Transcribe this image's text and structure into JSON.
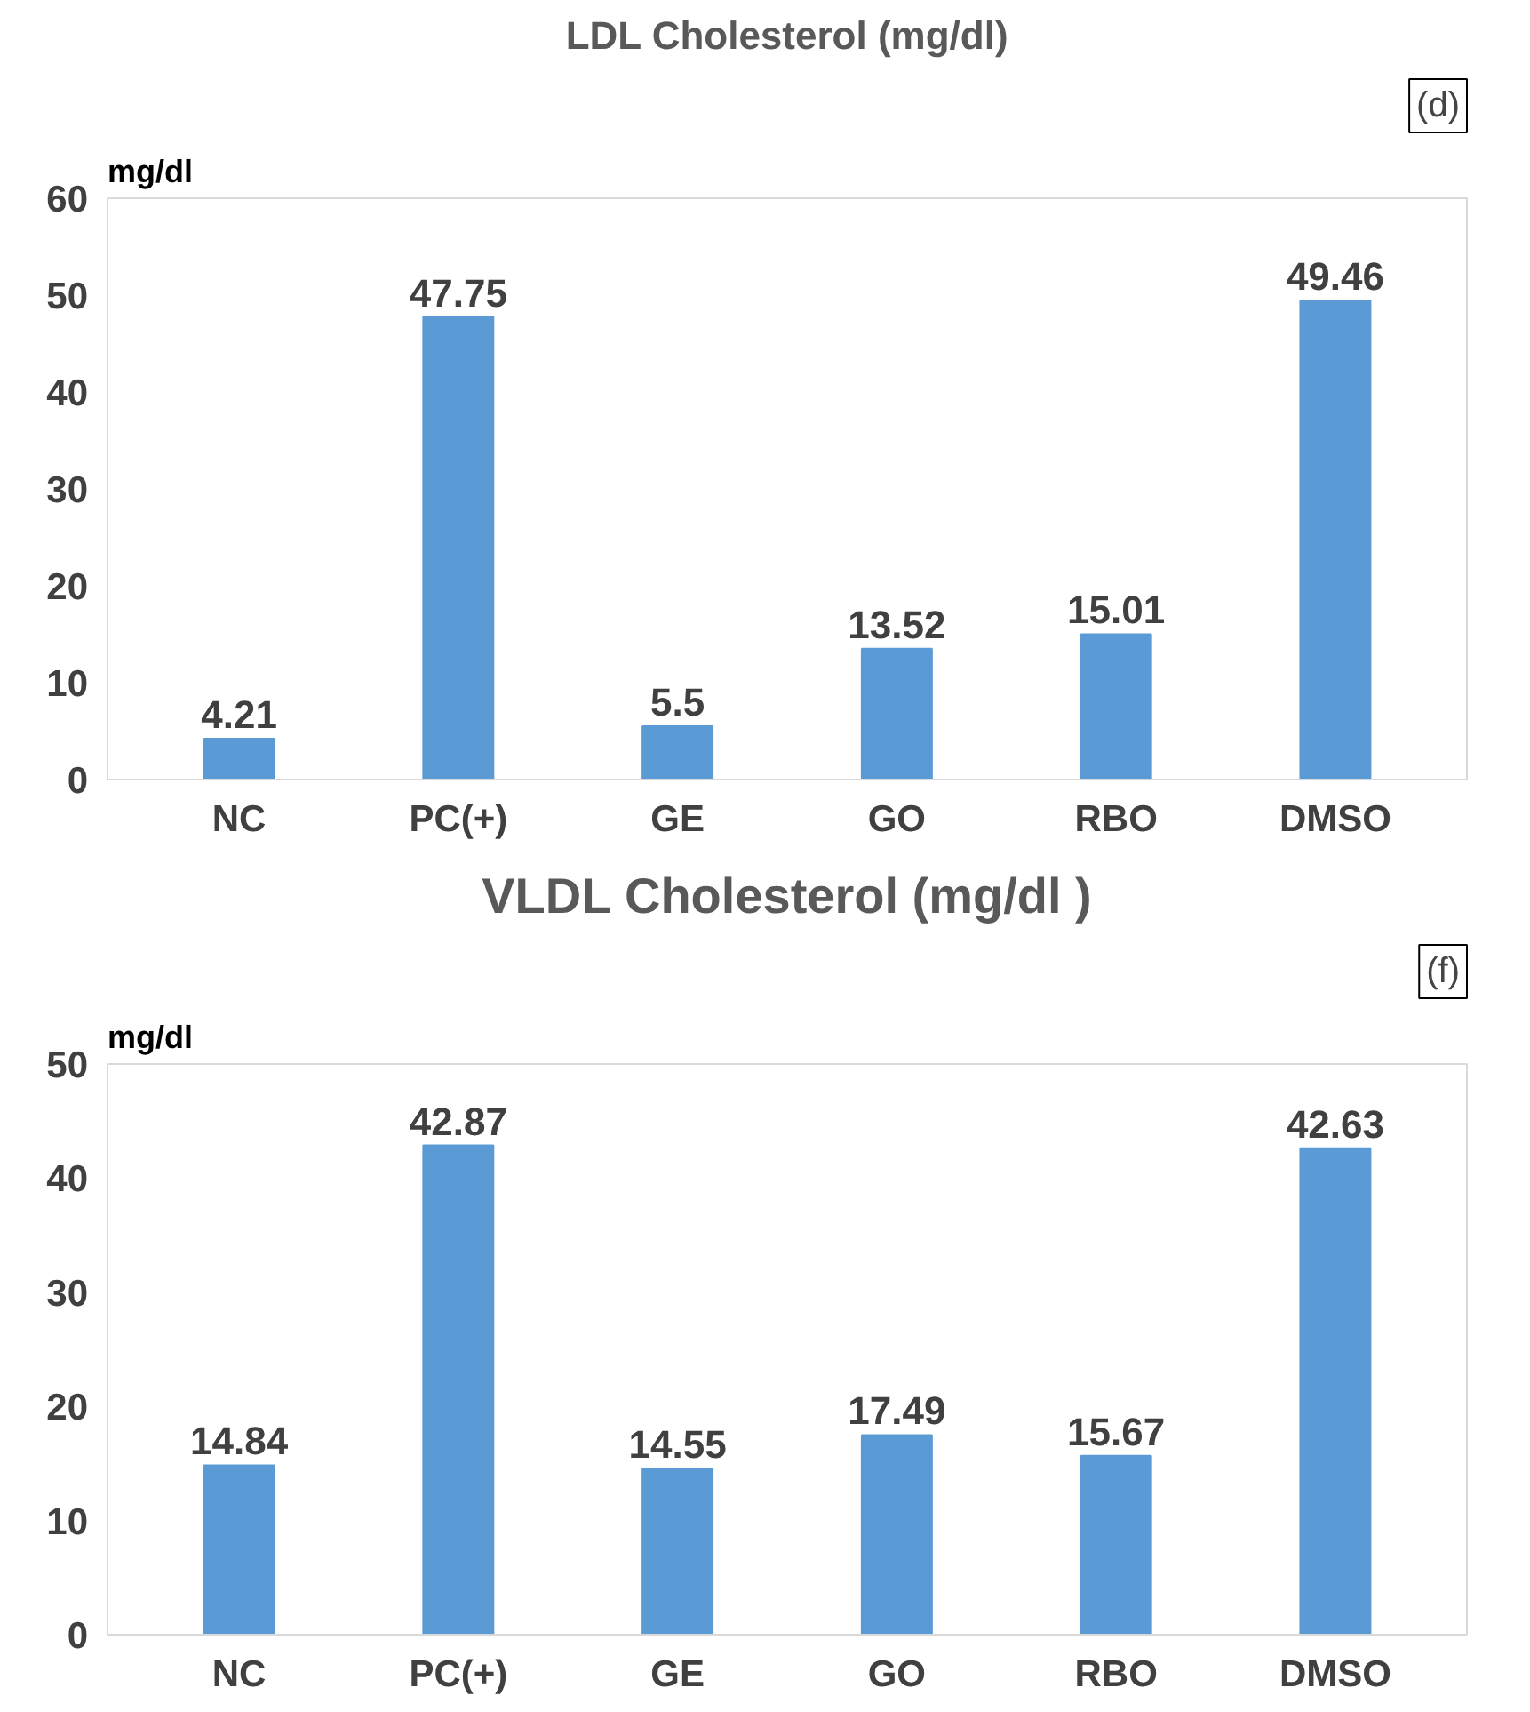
{
  "chart_data": [
    {
      "type": "bar",
      "title": "LDL Cholesterol (mg/dl)",
      "ylabel": "mg/dl",
      "categories": [
        "NC",
        "PC(+)",
        "GE",
        "GO",
        "RBO",
        "DMSO"
      ],
      "values": [
        4.21,
        47.75,
        5.5,
        13.52,
        15.01,
        49.46
      ],
      "color": "#5b9bd5",
      "ylim": [
        0,
        60
      ],
      "yticks": [
        0,
        10,
        20,
        30,
        40,
        50,
        60
      ],
      "grid": false,
      "data_labels": true,
      "annotations": [
        "(d)"
      ]
    },
    {
      "type": "bar",
      "title": "VLDL Cholesterol (mg/dl )",
      "ylabel": "mg/dl",
      "categories": [
        "NC",
        "PC(+)",
        "GE",
        "GO",
        "RBO",
        "DMSO"
      ],
      "values": [
        14.84,
        42.87,
        14.55,
        17.49,
        15.67,
        42.63
      ],
      "color": "#5b9bd5",
      "ylim": [
        0,
        50
      ],
      "yticks": [
        0,
        10,
        20,
        30,
        40,
        50
      ],
      "grid": false,
      "data_labels": true,
      "annotations": [
        "(f)"
      ]
    }
  ]
}
